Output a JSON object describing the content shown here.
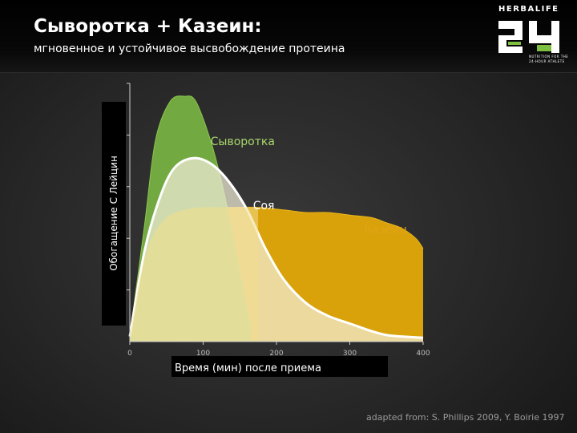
{
  "header": {
    "title": "Сыворотка + Казеин:",
    "subtitle": "мгновенное и устойчивое высвобождение протеина"
  },
  "logo": {
    "brand": "HERBALIFE",
    "number": "24",
    "tagline_1": "NUTRITION FOR THE",
    "tagline_2": "24-HOUR ATHLETE",
    "colors": {
      "white": "#ffffff",
      "green": "#7fbf3f"
    }
  },
  "source_note": "adapted from: S. Phillips 2009, Y. Boirie 1997",
  "chart_data": {
    "type": "area",
    "ylabel": "Обогащение С Лейцин",
    "xlabel": "Время (мин) после приема",
    "xlim": [
      0,
      400
    ],
    "ylim": [
      0,
      1
    ],
    "x_ticks": [
      "0",
      "100",
      "200",
      "300",
      "400"
    ],
    "x_tick_values": [
      0,
      100,
      200,
      300,
      400
    ],
    "y_ticks_visible": false,
    "series": [
      {
        "name": "Сыворотка",
        "color": "#76b041",
        "points": [
          [
            0,
            0.02
          ],
          [
            20,
            0.45
          ],
          [
            35,
            0.78
          ],
          [
            55,
            0.93
          ],
          [
            75,
            0.95
          ],
          [
            90,
            0.93
          ],
          [
            110,
            0.78
          ],
          [
            125,
            0.62
          ],
          [
            140,
            0.42
          ],
          [
            155,
            0.2
          ],
          [
            165,
            0.05
          ]
        ]
      },
      {
        "name": "Соя",
        "color": "#ffffff",
        "points": [
          [
            0,
            0.02
          ],
          [
            20,
            0.35
          ],
          [
            40,
            0.55
          ],
          [
            60,
            0.67
          ],
          [
            85,
            0.71
          ],
          [
            110,
            0.69
          ],
          [
            135,
            0.62
          ],
          [
            160,
            0.51
          ],
          [
            185,
            0.36
          ],
          [
            210,
            0.24
          ],
          [
            240,
            0.15
          ],
          [
            270,
            0.1
          ],
          [
            300,
            0.07
          ],
          [
            330,
            0.04
          ],
          [
            350,
            0.025
          ],
          [
            370,
            0.02
          ],
          [
            400,
            0.015
          ]
        ]
      },
      {
        "name": "Казеин",
        "color": "#d9a20a",
        "points": [
          [
            0,
            0.02
          ],
          [
            15,
            0.26
          ],
          [
            30,
            0.4
          ],
          [
            50,
            0.48
          ],
          [
            75,
            0.51
          ],
          [
            100,
            0.52
          ],
          [
            140,
            0.52
          ],
          [
            175,
            0.52
          ],
          [
            210,
            0.51
          ],
          [
            240,
            0.5
          ],
          [
            270,
            0.5
          ],
          [
            300,
            0.49
          ],
          [
            330,
            0.48
          ],
          [
            350,
            0.46
          ],
          [
            370,
            0.44
          ],
          [
            390,
            0.4
          ],
          [
            400,
            0.36
          ],
          [
            400,
            0
          ]
        ]
      }
    ],
    "series_label_colors": {
      "Сыворотка": "#a8d86a",
      "Соя": "#ffffff",
      "Казеин": "#e0a416"
    }
  }
}
